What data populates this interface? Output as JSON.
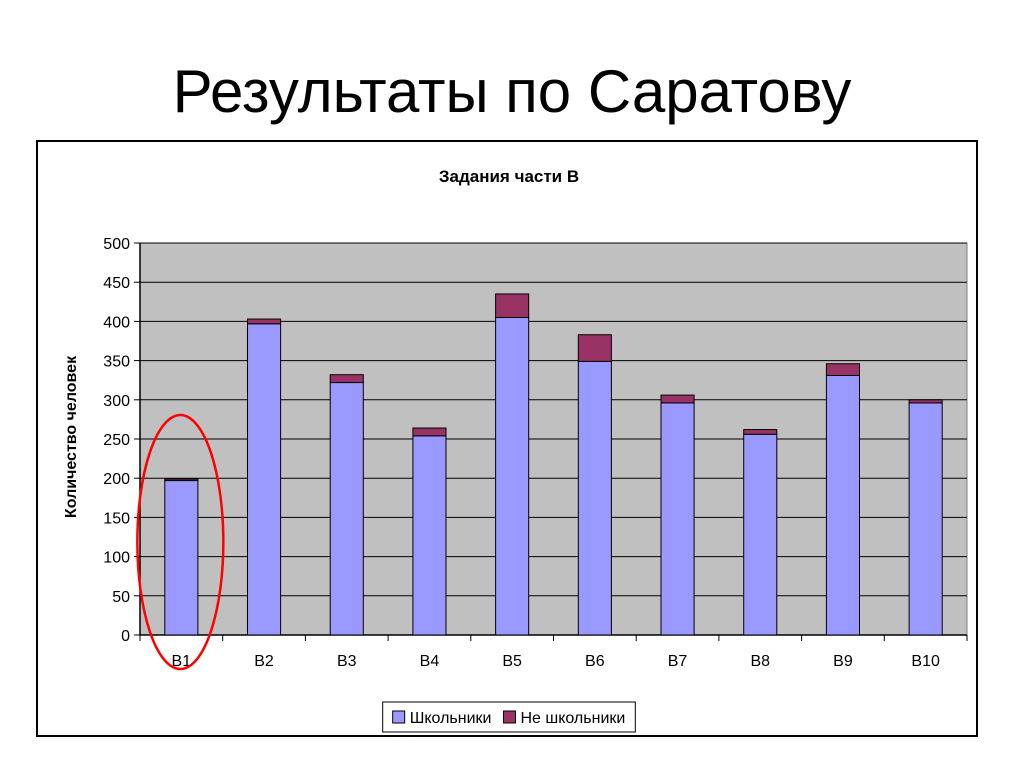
{
  "slide": {
    "title": "Результаты по Саратову"
  },
  "chart_data": {
    "type": "bar",
    "stacked": true,
    "title": "Задания части B",
    "xlabel": "",
    "ylabel": "Количество человек",
    "ylim": [
      0,
      500
    ],
    "yticks": [
      0,
      50,
      100,
      150,
      200,
      250,
      300,
      350,
      400,
      450,
      500
    ],
    "grid": true,
    "legend_position": "bottom",
    "categories": [
      "B1",
      "B2",
      "B3",
      "B4",
      "B5",
      "B6",
      "B7",
      "B8",
      "B9",
      "B10"
    ],
    "series": [
      {
        "name": "Школьники",
        "color": "#9999ff",
        "values": [
          197,
          397,
          322,
          254,
          405,
          349,
          296,
          256,
          331,
          296
        ]
      },
      {
        "name": "Не школьники",
        "color": "#993366",
        "values": [
          2,
          6,
          10,
          10,
          30,
          34,
          10,
          6,
          15,
          4
        ]
      }
    ],
    "annotations": [
      {
        "type": "ellipse",
        "target_category": "B1",
        "color": "#ff0000"
      }
    ],
    "plot_background": "#c0c0c0"
  }
}
